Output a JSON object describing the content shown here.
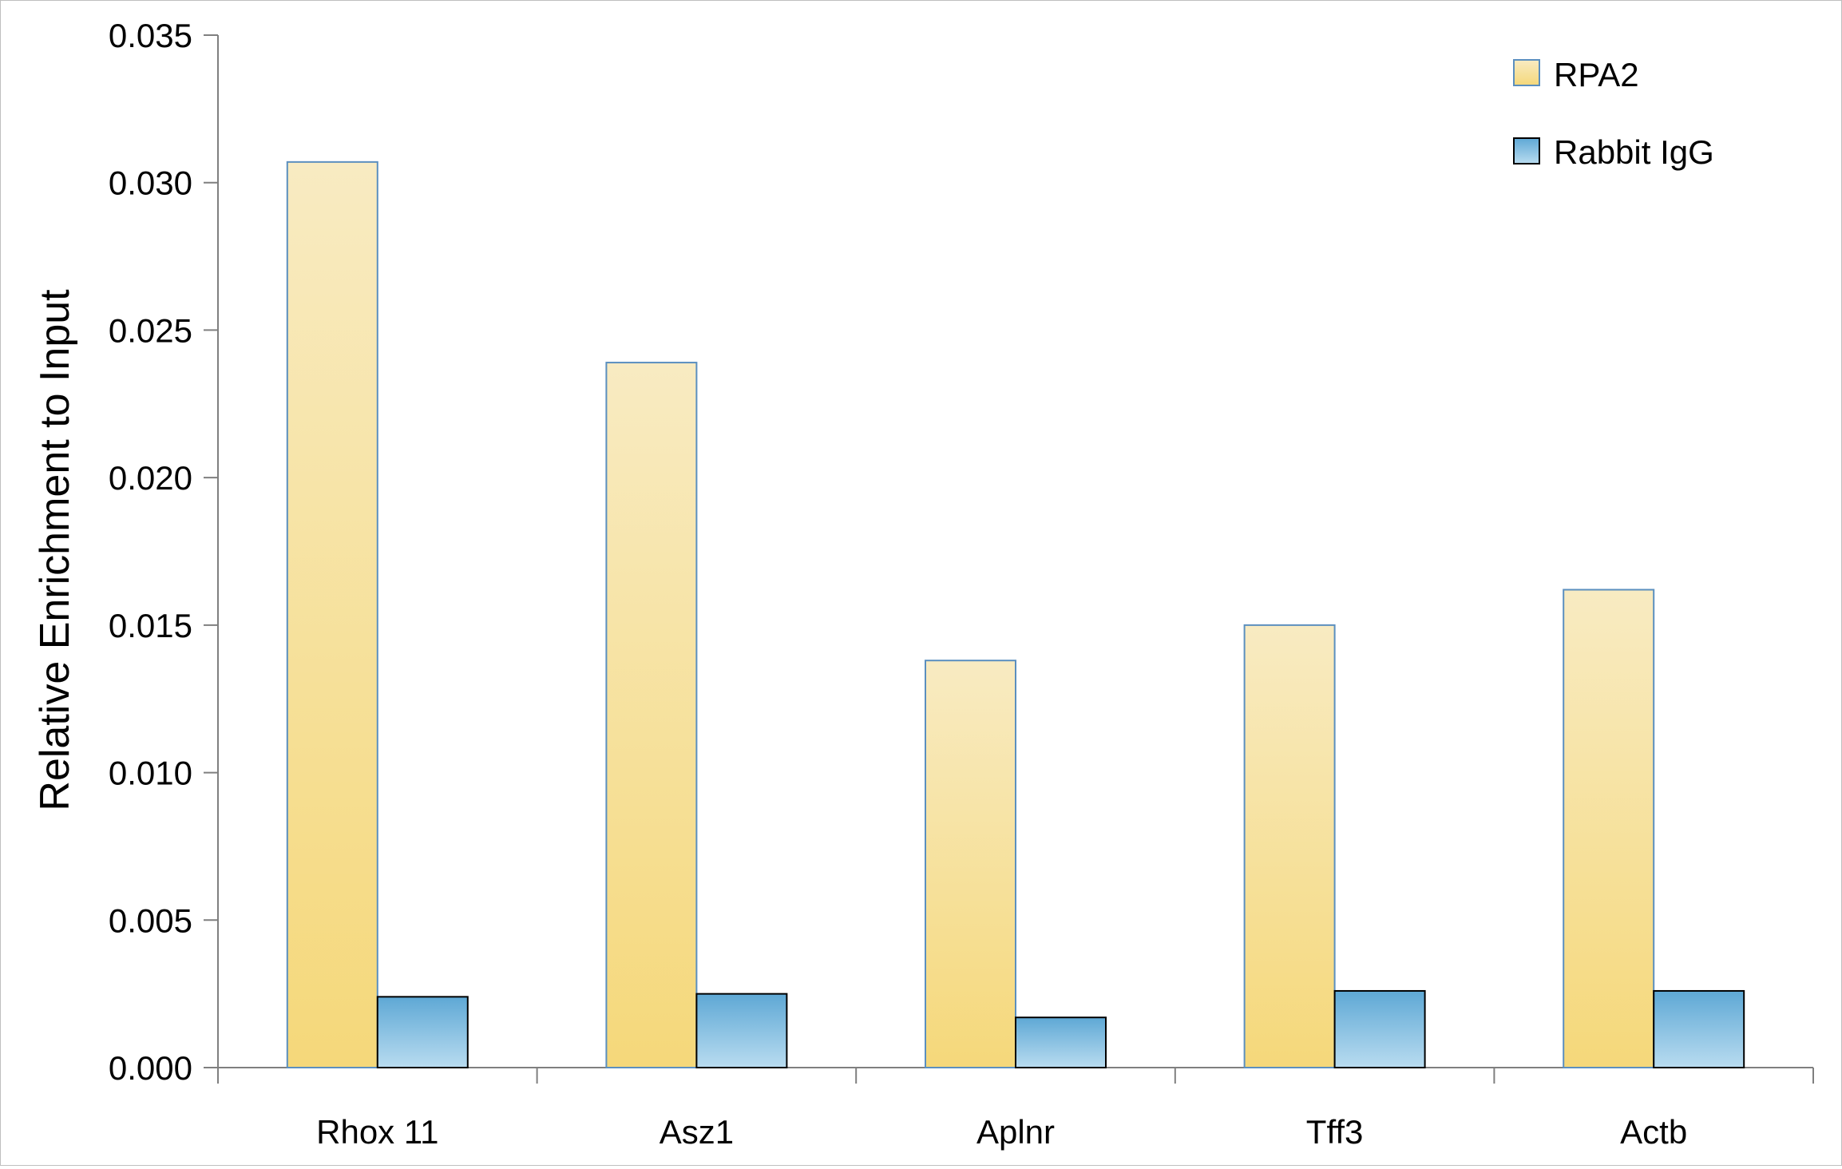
{
  "chart_data": {
    "type": "bar",
    "categories": [
      "Rhox 11",
      "Asz1",
      "Aplnr",
      "Tff3",
      "Actb"
    ],
    "series": [
      {
        "name": "RPA2",
        "values": [
          0.0307,
          0.0239,
          0.0138,
          0.015,
          0.0162
        ]
      },
      {
        "name": "Rabbit IgG",
        "values": [
          0.0024,
          0.0025,
          0.0017,
          0.0026,
          0.0026
        ]
      }
    ],
    "xlabel": "",
    "ylabel": "Relative Enrichment to Input",
    "ylim": [
      0,
      0.035
    ],
    "yticks": [
      "0.000",
      "0.005",
      "0.010",
      "0.015",
      "0.020",
      "0.025",
      "0.030",
      "0.035"
    ],
    "ytick_values": [
      0,
      0.005,
      0.01,
      0.015,
      0.02,
      0.025,
      0.03,
      0.035
    ],
    "grid": false,
    "legend_position": "top-right",
    "colors": {
      "RPA2_top": "#f8ebc2",
      "RPA2_bottom": "#f5d87a",
      "RPA2_stroke": "#5b8fbf",
      "IgG_top": "#5ea8d5",
      "IgG_bottom": "#b9dcf0",
      "IgG_stroke": "#000000",
      "axis": "#7f7f7f"
    }
  }
}
